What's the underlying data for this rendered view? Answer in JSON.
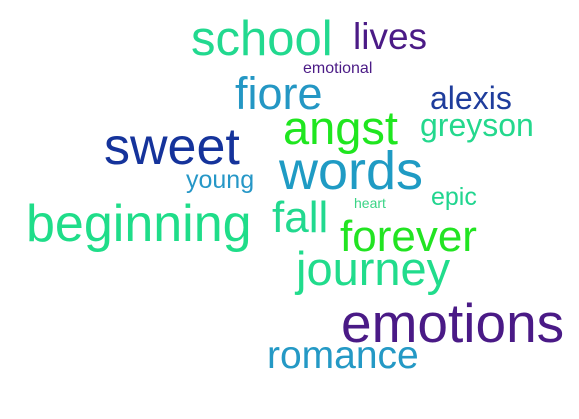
{
  "word_cloud": {
    "words": [
      {
        "id": "school",
        "text": "school",
        "color": "#22d98f"
      },
      {
        "id": "lives",
        "text": "lives",
        "color": "#4b1b86"
      },
      {
        "id": "emotional",
        "text": "emotional",
        "color": "#4b1b86"
      },
      {
        "id": "fiore",
        "text": "fiore",
        "color": "#2497c4"
      },
      {
        "id": "alexis",
        "text": "alexis",
        "color": "#1f3d9c"
      },
      {
        "id": "angst",
        "text": "angst",
        "color": "#1fe61f"
      },
      {
        "id": "greyson",
        "text": "greyson",
        "color": "#24d88d"
      },
      {
        "id": "sweet",
        "text": "sweet",
        "color": "#15339b"
      },
      {
        "id": "words",
        "text": "words",
        "color": "#1f9bc4"
      },
      {
        "id": "young",
        "text": "young",
        "color": "#2697c7"
      },
      {
        "id": "epic",
        "text": "epic",
        "color": "#21d58f"
      },
      {
        "id": "heart",
        "text": "heart",
        "color": "#3ad486"
      },
      {
        "id": "beginning",
        "text": "beginning",
        "color": "#1fdd89"
      },
      {
        "id": "fall",
        "text": "fall",
        "color": "#22d98f"
      },
      {
        "id": "forever",
        "text": "forever",
        "color": "#22e422"
      },
      {
        "id": "journey",
        "text": "journey",
        "color": "#21dc8c"
      },
      {
        "id": "emotions",
        "text": "emotions",
        "color": "#4a1a86"
      },
      {
        "id": "romance",
        "text": "romance",
        "color": "#2499c5"
      }
    ]
  }
}
